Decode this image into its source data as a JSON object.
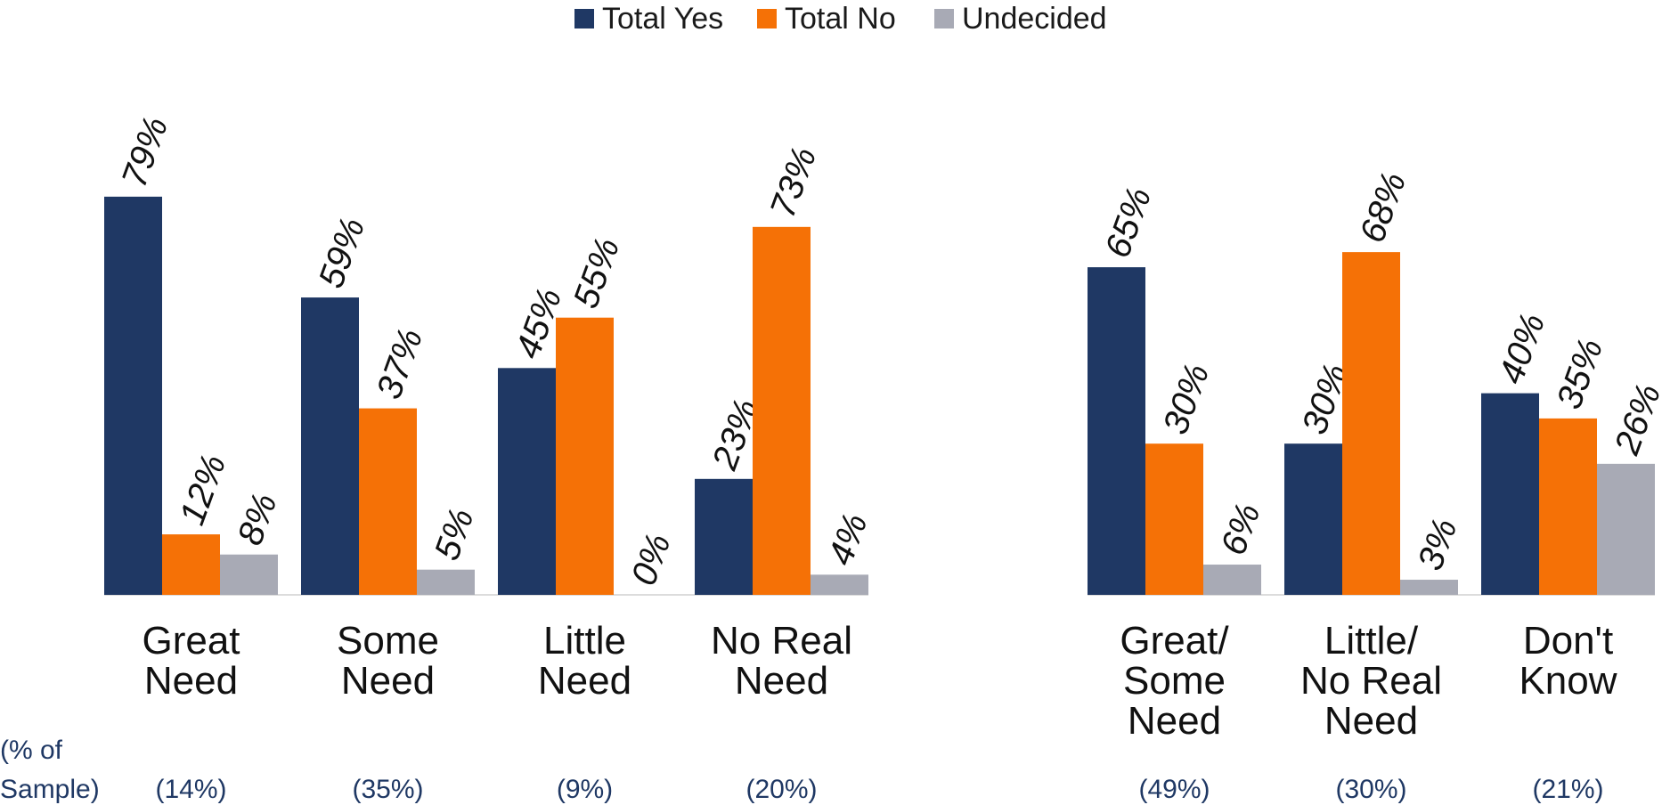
{
  "chart_data": {
    "type": "bar",
    "legend": {
      "placement": "top-center",
      "entries": [
        {
          "name": "Total Yes",
          "color": "#1f3864"
        },
        {
          "name": "Total No",
          "color": "#f57106"
        },
        {
          "name": "Undecided",
          "color": "#a8aab5"
        }
      ]
    },
    "ylim": [
      0,
      100
    ],
    "grid": false,
    "value_suffix": "%",
    "sample_axis_label": [
      "(% of",
      "Sample)"
    ],
    "groups": [
      {
        "categories": [
          {
            "label": [
              "Great",
              "Need"
            ],
            "sample": "(14%)",
            "values": [
              79,
              12,
              8
            ]
          },
          {
            "label": [
              "Some",
              "Need"
            ],
            "sample": "(35%)",
            "values": [
              59,
              37,
              5
            ]
          },
          {
            "label": [
              "Little",
              "Need"
            ],
            "sample": "(9%)",
            "values": [
              45,
              55,
              0
            ]
          },
          {
            "label": [
              "No Real",
              "Need"
            ],
            "sample": "(20%)",
            "values": [
              23,
              73,
              4
            ]
          }
        ]
      },
      {
        "categories": [
          {
            "label": [
              "Great/",
              "Some",
              "Need"
            ],
            "sample": "(49%)",
            "values": [
              65,
              30,
              6
            ]
          },
          {
            "label": [
              "Little/",
              "No Real",
              "Need"
            ],
            "sample": "(30%)",
            "values": [
              30,
              68,
              3
            ]
          },
          {
            "label": [
              "Don't",
              "Know"
            ],
            "sample": "(21%)",
            "values": [
              40,
              35,
              26
            ]
          }
        ]
      }
    ]
  }
}
